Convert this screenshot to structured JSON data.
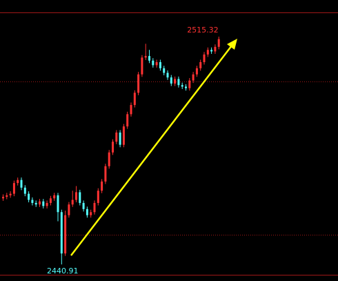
{
  "chart_data": {
    "type": "candlestick",
    "up_color": "#ff3232",
    "down_color": "#54fcfc",
    "ylim": [
      2435.5,
      2527.3
    ],
    "hlines": [
      2500.7,
      2450.6
    ],
    "max_label": "2515.32",
    "min_label": "2440.91",
    "open": [
      2462.5,
      2463.0,
      2463.5,
      2464.0,
      2467.5,
      2468.5,
      2466.0,
      2464.0,
      2462.0,
      2461.0,
      2460.5,
      2461.5,
      2460.0,
      2461.0,
      2462.5,
      2463.5,
      2458.0,
      2444.5,
      2457.0,
      2460.5,
      2462.0,
      2464.5,
      2461.0,
      2459.0,
      2457.0,
      2458.0,
      2461.0,
      2465.0,
      2468.0,
      2473.0,
      2477.5,
      2481.0,
      2484.0,
      2480.0,
      2486.0,
      2490.0,
      2493.0,
      2497.0,
      2503.0,
      2508.5,
      2509.0,
      2507.5,
      2506.0,
      2507.0,
      2505.0,
      2503.5,
      2502.0,
      2500.0,
      2501.5,
      2499.5,
      2499.0,
      2498.5,
      2501.0,
      2503.0,
      2505.0,
      2507.0,
      2509.5,
      2511.0,
      2510.5,
      2512.0
    ],
    "high": [
      2463.8,
      2464.3,
      2464.8,
      2468.3,
      2469.3,
      2469.3,
      2466.8,
      2464.8,
      2462.8,
      2461.8,
      2462.3,
      2462.3,
      2461.8,
      2463.3,
      2464.3,
      2464.3,
      2458.8,
      2458.5,
      2461.3,
      2465.0,
      2466.5,
      2465.3,
      2461.8,
      2459.8,
      2458.8,
      2461.8,
      2465.8,
      2468.8,
      2473.8,
      2478.3,
      2481.8,
      2484.8,
      2484.8,
      2486.8,
      2490.8,
      2493.8,
      2497.8,
      2503.8,
      2509.3,
      2513.0,
      2511.0,
      2508.3,
      2507.8,
      2507.8,
      2505.8,
      2504.3,
      2502.8,
      2502.3,
      2502.3,
      2500.3,
      2499.8,
      2501.8,
      2503.8,
      2505.8,
      2507.8,
      2510.3,
      2511.8,
      2511.8,
      2512.8,
      2515.32
    ],
    "low": [
      2461.7,
      2462.2,
      2462.7,
      2463.2,
      2466.7,
      2465.2,
      2463.2,
      2461.2,
      2460.2,
      2459.7,
      2459.7,
      2459.2,
      2459.2,
      2460.2,
      2461.7,
      2455.0,
      2440.91,
      2443.7,
      2456.2,
      2459.7,
      2461.2,
      2460.2,
      2458.2,
      2456.2,
      2456.2,
      2457.2,
      2460.2,
      2464.2,
      2467.2,
      2472.2,
      2476.7,
      2480.2,
      2479.2,
      2479.2,
      2485.2,
      2489.2,
      2492.2,
      2496.2,
      2502.2,
      2507.7,
      2506.7,
      2505.2,
      2505.2,
      2504.2,
      2502.7,
      2501.2,
      2499.2,
      2499.2,
      2498.7,
      2498.2,
      2497.7,
      2497.7,
      2500.2,
      2502.2,
      2504.2,
      2506.2,
      2508.7,
      2509.7,
      2509.7,
      2511.2
    ],
    "close": [
      2463.0,
      2463.5,
      2464.0,
      2467.5,
      2468.5,
      2466.0,
      2464.0,
      2462.0,
      2461.0,
      2460.5,
      2461.5,
      2460.0,
      2461.0,
      2462.5,
      2463.5,
      2458.0,
      2444.5,
      2457.0,
      2460.5,
      2462.0,
      2464.5,
      2461.0,
      2459.0,
      2457.0,
      2458.0,
      2461.0,
      2465.0,
      2468.0,
      2473.0,
      2477.5,
      2481.0,
      2484.0,
      2480.0,
      2486.0,
      2490.0,
      2493.0,
      2497.0,
      2503.0,
      2508.5,
      2509.0,
      2507.5,
      2506.0,
      2507.0,
      2505.0,
      2503.5,
      2502.0,
      2500.0,
      2501.5,
      2499.5,
      2499.0,
      2498.5,
      2501.0,
      2503.0,
      2505.0,
      2507.0,
      2509.5,
      2511.0,
      2510.5,
      2512.0,
      2514.5
    ]
  }
}
